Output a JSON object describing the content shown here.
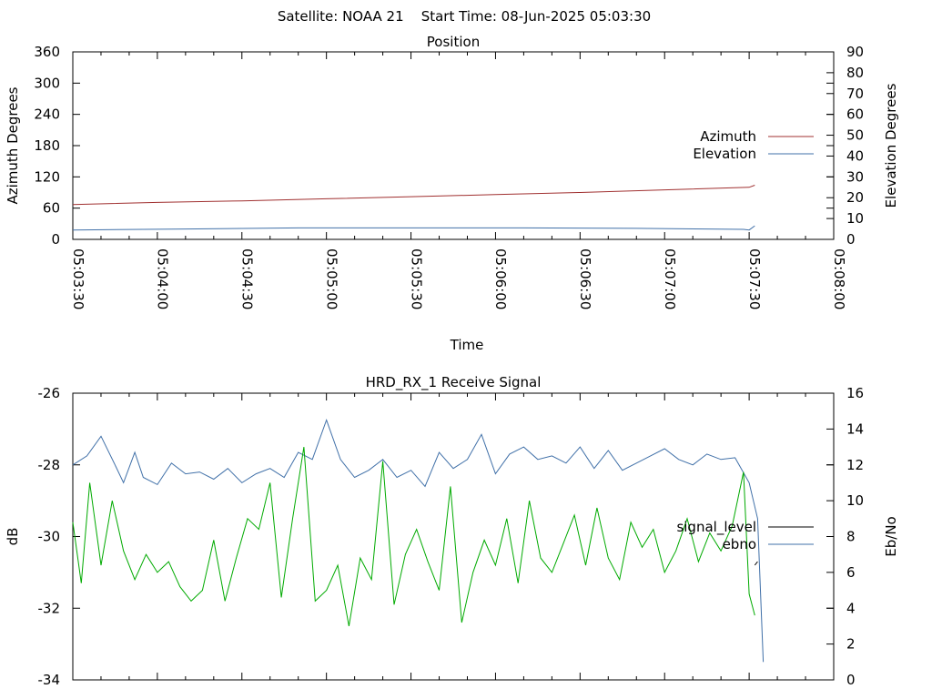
{
  "header": {
    "title": "Satellite: NOAA 21    Start Time: 08-Jun-2025 05:03:30"
  },
  "chart_data": [
    {
      "type": "line",
      "title": "Position",
      "xlabel": "Time",
      "ylabel": "Azimuth Degrees",
      "y2label": "Elevation Degrees",
      "x_ticks": [
        "05:03:30",
        "05:04:00",
        "05:04:30",
        "05:05:00",
        "05:05:30",
        "05:06:00",
        "05:06:30",
        "05:07:00",
        "05:07:30",
        "05:08:00"
      ],
      "xlim_seconds": [
        0,
        270
      ],
      "ylim": [
        0,
        360
      ],
      "y_ticks": [
        0,
        60,
        120,
        180,
        240,
        300,
        360
      ],
      "y2lim": [
        0,
        90
      ],
      "y2_ticks": [
        0,
        10,
        20,
        30,
        40,
        50,
        60,
        70,
        80,
        90
      ],
      "legend_position": "right",
      "series": [
        {
          "name": "Azimuth",
          "axis": "y",
          "color": "#a03030",
          "points": [
            [
              0,
              67
            ],
            [
              30,
              71
            ],
            [
              60,
              74
            ],
            [
              90,
              78
            ],
            [
              120,
              82
            ],
            [
              150,
              86
            ],
            [
              180,
              90
            ],
            [
              210,
              95
            ],
            [
              240,
              100
            ],
            [
              242,
              104
            ]
          ]
        },
        {
          "name": "Elevation",
          "axis": "y2",
          "color": "#4070a8",
          "points": [
            [
              0,
              4.5
            ],
            [
              40,
              5
            ],
            [
              80,
              5.5
            ],
            [
              120,
              5.5
            ],
            [
              160,
              5.5
            ],
            [
              200,
              5.3
            ],
            [
              225,
              5
            ],
            [
              238,
              4.8
            ],
            [
              240,
              4.5
            ],
            [
              242,
              6.5
            ]
          ]
        }
      ]
    },
    {
      "type": "line",
      "title": "HRD_RX_1 Receive Signal",
      "ylabel": "dB",
      "y2label": "Eb/No",
      "xlim_seconds": [
        0,
        270
      ],
      "ylim": [
        -34,
        -26
      ],
      "y_ticks": [
        -34,
        -32,
        -30,
        -28,
        -26
      ],
      "y2lim": [
        0,
        16
      ],
      "y2_ticks": [
        0,
        2,
        4,
        6,
        8,
        10,
        12,
        14,
        16
      ],
      "legend_position": "right",
      "series": [
        {
          "name": "signal_level",
          "axis": "y",
          "color": "#000000",
          "points": [
            [
              242,
              -30.8
            ],
            [
              243,
              -30.7
            ]
          ]
        },
        {
          "name": "ebno",
          "axis": "y2",
          "color": "#4070a8",
          "points": [
            [
              0,
              12
            ],
            [
              5,
              12.5
            ],
            [
              10,
              13.6
            ],
            [
              15,
              12
            ],
            [
              18,
              11
            ],
            [
              22,
              12.7
            ],
            [
              25,
              11.3
            ],
            [
              30,
              10.9
            ],
            [
              35,
              12.1
            ],
            [
              40,
              11.5
            ],
            [
              45,
              11.6
            ],
            [
              50,
              11.2
            ],
            [
              55,
              11.8
            ],
            [
              60,
              11
            ],
            [
              65,
              11.5
            ],
            [
              70,
              11.8
            ],
            [
              75,
              11.3
            ],
            [
              80,
              12.7
            ],
            [
              85,
              12.3
            ],
            [
              90,
              14.5
            ],
            [
              95,
              12.3
            ],
            [
              100,
              11.3
            ],
            [
              105,
              11.7
            ],
            [
              110,
              12.3
            ],
            [
              115,
              11.3
            ],
            [
              120,
              11.7
            ],
            [
              125,
              10.8
            ],
            [
              130,
              12.7
            ],
            [
              135,
              11.8
            ],
            [
              140,
              12.3
            ],
            [
              145,
              13.7
            ],
            [
              150,
              11.5
            ],
            [
              155,
              12.6
            ],
            [
              160,
              13
            ],
            [
              165,
              12.3
            ],
            [
              170,
              12.5
            ],
            [
              175,
              12.1
            ],
            [
              180,
              13
            ],
            [
              185,
              11.8
            ],
            [
              190,
              12.8
            ],
            [
              195,
              11.7
            ],
            [
              200,
              12.1
            ],
            [
              205,
              12.5
            ],
            [
              210,
              12.9
            ],
            [
              215,
              12.3
            ],
            [
              220,
              12
            ],
            [
              225,
              12.6
            ],
            [
              230,
              12.3
            ],
            [
              235,
              12.4
            ],
            [
              240,
              11
            ],
            [
              243,
              9
            ],
            [
              245,
              1
            ]
          ]
        },
        {
          "name": "",
          "axis": "y",
          "color": "#00aa00",
          "points": [
            [
              0,
              -29.6
            ],
            [
              3,
              -31.3
            ],
            [
              6,
              -28.5
            ],
            [
              10,
              -30.8
            ],
            [
              14,
              -29
            ],
            [
              18,
              -30.4
            ],
            [
              22,
              -31.2
            ],
            [
              26,
              -30.5
            ],
            [
              30,
              -31
            ],
            [
              34,
              -30.7
            ],
            [
              38,
              -31.4
            ],
            [
              42,
              -31.8
            ],
            [
              46,
              -31.5
            ],
            [
              50,
              -30.1
            ],
            [
              54,
              -31.8
            ],
            [
              58,
              -30.6
            ],
            [
              62,
              -29.5
            ],
            [
              66,
              -29.8
            ],
            [
              70,
              -28.5
            ],
            [
              74,
              -31.7
            ],
            [
              78,
              -29.5
            ],
            [
              82,
              -27.5
            ],
            [
              86,
              -31.8
            ],
            [
              90,
              -31.5
            ],
            [
              94,
              -30.8
            ],
            [
              98,
              -32.5
            ],
            [
              102,
              -30.6
            ],
            [
              106,
              -31.2
            ],
            [
              110,
              -27.9
            ],
            [
              114,
              -31.9
            ],
            [
              118,
              -30.5
            ],
            [
              122,
              -29.8
            ],
            [
              126,
              -30.7
            ],
            [
              130,
              -31.5
            ],
            [
              134,
              -28.6
            ],
            [
              138,
              -32.4
            ],
            [
              142,
              -31
            ],
            [
              146,
              -30.1
            ],
            [
              150,
              -30.8
            ],
            [
              154,
              -29.5
            ],
            [
              158,
              -31.3
            ],
            [
              162,
              -29
            ],
            [
              166,
              -30.6
            ],
            [
              170,
              -31
            ],
            [
              174,
              -30.2
            ],
            [
              178,
              -29.4
            ],
            [
              182,
              -30.8
            ],
            [
              186,
              -29.2
            ],
            [
              190,
              -30.6
            ],
            [
              194,
              -31.2
            ],
            [
              198,
              -29.6
            ],
            [
              202,
              -30.3
            ],
            [
              206,
              -29.8
            ],
            [
              210,
              -31
            ],
            [
              214,
              -30.4
            ],
            [
              218,
              -29.5
            ],
            [
              222,
              -30.7
            ],
            [
              226,
              -29.9
            ],
            [
              230,
              -30.4
            ],
            [
              234,
              -29.7
            ],
            [
              238,
              -28.2
            ],
            [
              240,
              -31.6
            ],
            [
              242,
              -32.2
            ]
          ]
        }
      ]
    }
  ]
}
